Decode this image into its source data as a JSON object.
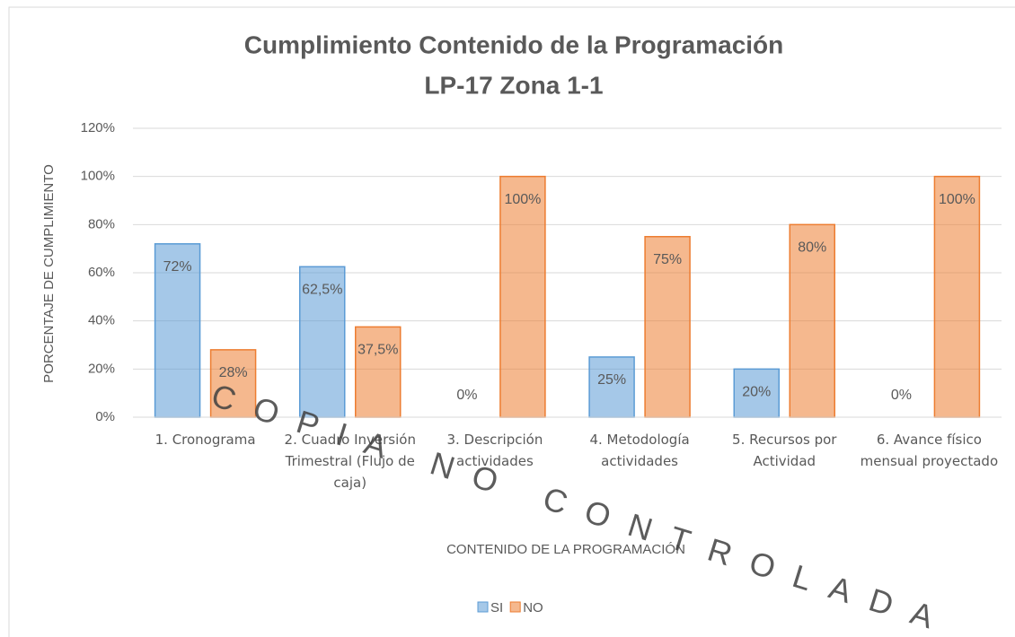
{
  "chart_data": {
    "type": "bar",
    "title": [
      "Cumplimiento Contenido de la Programación",
      "LP-17 Zona 1-1"
    ],
    "x_label": "CONTENIDO DE LA PROGRAMACIÓN",
    "y_label": "PORCENTAJE DE CUMPLIMIENTO",
    "watermark": "COPIA NO CONTROLADA",
    "categories": [
      "1. Cronograma",
      "2. Cuadro Inversión Trimestral (Flujo de caja)",
      "3. Descripción actividades",
      "4. Metodología actividades",
      "5. Recursos por Actividad",
      "6. Avance físico mensual proyectado"
    ],
    "series": [
      {
        "name": "SI",
        "color": "#5b9bd5",
        "values": [
          72,
          62.5,
          0,
          25,
          20,
          0
        ],
        "value_labels": [
          "72%",
          "62,5%",
          "0%",
          "25%",
          "20%",
          "0%"
        ]
      },
      {
        "name": "NO",
        "color": "#ed7d31",
        "values": [
          28,
          37.5,
          100,
          75,
          80,
          100
        ],
        "value_labels": [
          "28%",
          "37,5%",
          "100%",
          "75%",
          "80%",
          "100%"
        ]
      }
    ],
    "ylim": [
      0,
      120
    ],
    "yticks": [
      {
        "value": 0,
        "label": "0%"
      },
      {
        "value": 20,
        "label": "20%"
      },
      {
        "value": 40,
        "label": "40%"
      },
      {
        "value": 60,
        "label": "60%"
      },
      {
        "value": 80,
        "label": "80%"
      },
      {
        "value": 100,
        "label": "100%"
      },
      {
        "value": 120,
        "label": "120%"
      }
    ],
    "grid": true,
    "legend": "bottom"
  }
}
